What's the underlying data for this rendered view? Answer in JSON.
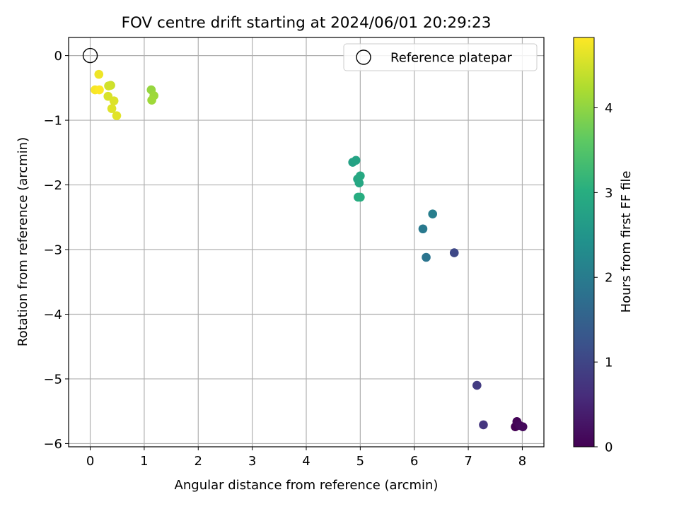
{
  "chart_data": {
    "type": "scatter",
    "title": "FOV centre drift starting at 2024/06/01 20:29:23",
    "xlabel": "Angular distance from reference (arcmin)",
    "ylabel": "Rotation from reference (arcmin)",
    "xlim": [
      -0.4,
      8.4
    ],
    "ylim": [
      -6.05,
      0.28
    ],
    "x_ticks": [
      0,
      1,
      2,
      3,
      4,
      5,
      6,
      7,
      8
    ],
    "x_tick_labels": [
      "0",
      "1",
      "2",
      "3",
      "4",
      "5",
      "6",
      "7",
      "8"
    ],
    "y_ticks": [
      0,
      -1,
      -2,
      -3,
      -4,
      -5,
      -6
    ],
    "y_tick_labels": [
      "0",
      "−1",
      "−2",
      "−3",
      "−4",
      "−5",
      "−6"
    ],
    "grid": true,
    "legend": {
      "position": "top-right",
      "entries": [
        "Reference platepar"
      ]
    },
    "reference_point": {
      "x": 0,
      "y": 0
    },
    "colorbar": {
      "label": "Hours from first FF file",
      "range": [
        0,
        4.83
      ],
      "ticks": [
        0,
        1,
        2,
        3,
        4
      ],
      "tick_labels": [
        "0",
        "1",
        "2",
        "3",
        "4"
      ],
      "colormap": "viridis"
    },
    "points": [
      {
        "x": 7.87,
        "y": -5.74,
        "h": 0.0
      },
      {
        "x": 7.9,
        "y": -5.66,
        "h": 0.05
      },
      {
        "x": 7.95,
        "y": -5.72,
        "h": 0.1
      },
      {
        "x": 8.01,
        "y": -5.74,
        "h": 0.12
      },
      {
        "x": 7.28,
        "y": -5.71,
        "h": 0.75
      },
      {
        "x": 7.16,
        "y": -5.1,
        "h": 0.85
      },
      {
        "x": 6.74,
        "y": -3.05,
        "h": 1.05
      },
      {
        "x": 6.22,
        "y": -3.12,
        "h": 1.85
      },
      {
        "x": 6.16,
        "y": -2.68,
        "h": 1.95
      },
      {
        "x": 6.34,
        "y": -2.45,
        "h": 2.05
      },
      {
        "x": 4.86,
        "y": -1.65,
        "h": 2.75
      },
      {
        "x": 4.92,
        "y": -1.62,
        "h": 2.8
      },
      {
        "x": 4.95,
        "y": -1.91,
        "h": 2.85
      },
      {
        "x": 4.98,
        "y": -1.97,
        "h": 2.88
      },
      {
        "x": 5.0,
        "y": -1.86,
        "h": 2.9
      },
      {
        "x": 4.96,
        "y": -2.19,
        "h": 2.95
      },
      {
        "x": 5.0,
        "y": -2.19,
        "h": 3.0
      },
      {
        "x": 1.13,
        "y": -0.53,
        "h": 4.05
      },
      {
        "x": 1.18,
        "y": -0.62,
        "h": 4.1
      },
      {
        "x": 1.14,
        "y": -0.69,
        "h": 4.12
      },
      {
        "x": 0.38,
        "y": -0.46,
        "h": 4.45
      },
      {
        "x": 0.34,
        "y": -0.47,
        "h": 4.5
      },
      {
        "x": 0.33,
        "y": -0.63,
        "h": 4.55
      },
      {
        "x": 0.44,
        "y": -0.7,
        "h": 4.58
      },
      {
        "x": 0.4,
        "y": -0.82,
        "h": 4.6
      },
      {
        "x": 0.49,
        "y": -0.93,
        "h": 4.62
      },
      {
        "x": 0.16,
        "y": -0.29,
        "h": 4.72
      },
      {
        "x": 0.09,
        "y": -0.53,
        "h": 4.78
      },
      {
        "x": 0.17,
        "y": -0.53,
        "h": 4.83
      }
    ]
  }
}
